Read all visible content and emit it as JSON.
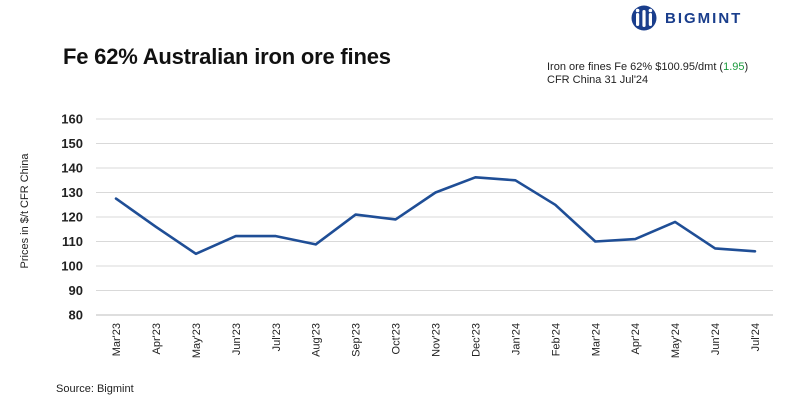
{
  "brand": {
    "name": "BIGMINT",
    "logo_icon": "bigmint-globe-icon",
    "color": "#1a3e8c"
  },
  "note": {
    "line1": "Iron ore fines Fe 62% $100.95/dmt (",
    "change": "1.95",
    "line1_end": ")",
    "line2": "CFR China 31 Jul'24",
    "change_color": "#1a9a3c"
  },
  "source": "Source: Bigmint",
  "chart_data": {
    "type": "line",
    "title": "Fe 62% Australian iron ore fines",
    "ylabel": "Prices in $/t CFR China",
    "xlabel": "",
    "ylim": [
      80,
      160
    ],
    "yticks": [
      80,
      90,
      100,
      110,
      120,
      130,
      140,
      150,
      160
    ],
    "grid": true,
    "categories": [
      "Mar'23",
      "Apr'23",
      "May'23",
      "Jun'23",
      "Jul'23",
      "Aug'23",
      "Sep'23",
      "Oct'23",
      "Nov'23",
      "Dec'23",
      "Jan'24",
      "Feb'24",
      "Mar'24",
      "Apr'24",
      "May'24",
      "Jun'24",
      "Jul'24"
    ],
    "series": [
      {
        "values": [
          127.5,
          116,
          105,
          112.2,
          112.2,
          108.8,
          121,
          119,
          130,
          136.2,
          135,
          125,
          110,
          111,
          118,
          107.2,
          106
        ],
        "color": "#1f4e96"
      }
    ]
  }
}
